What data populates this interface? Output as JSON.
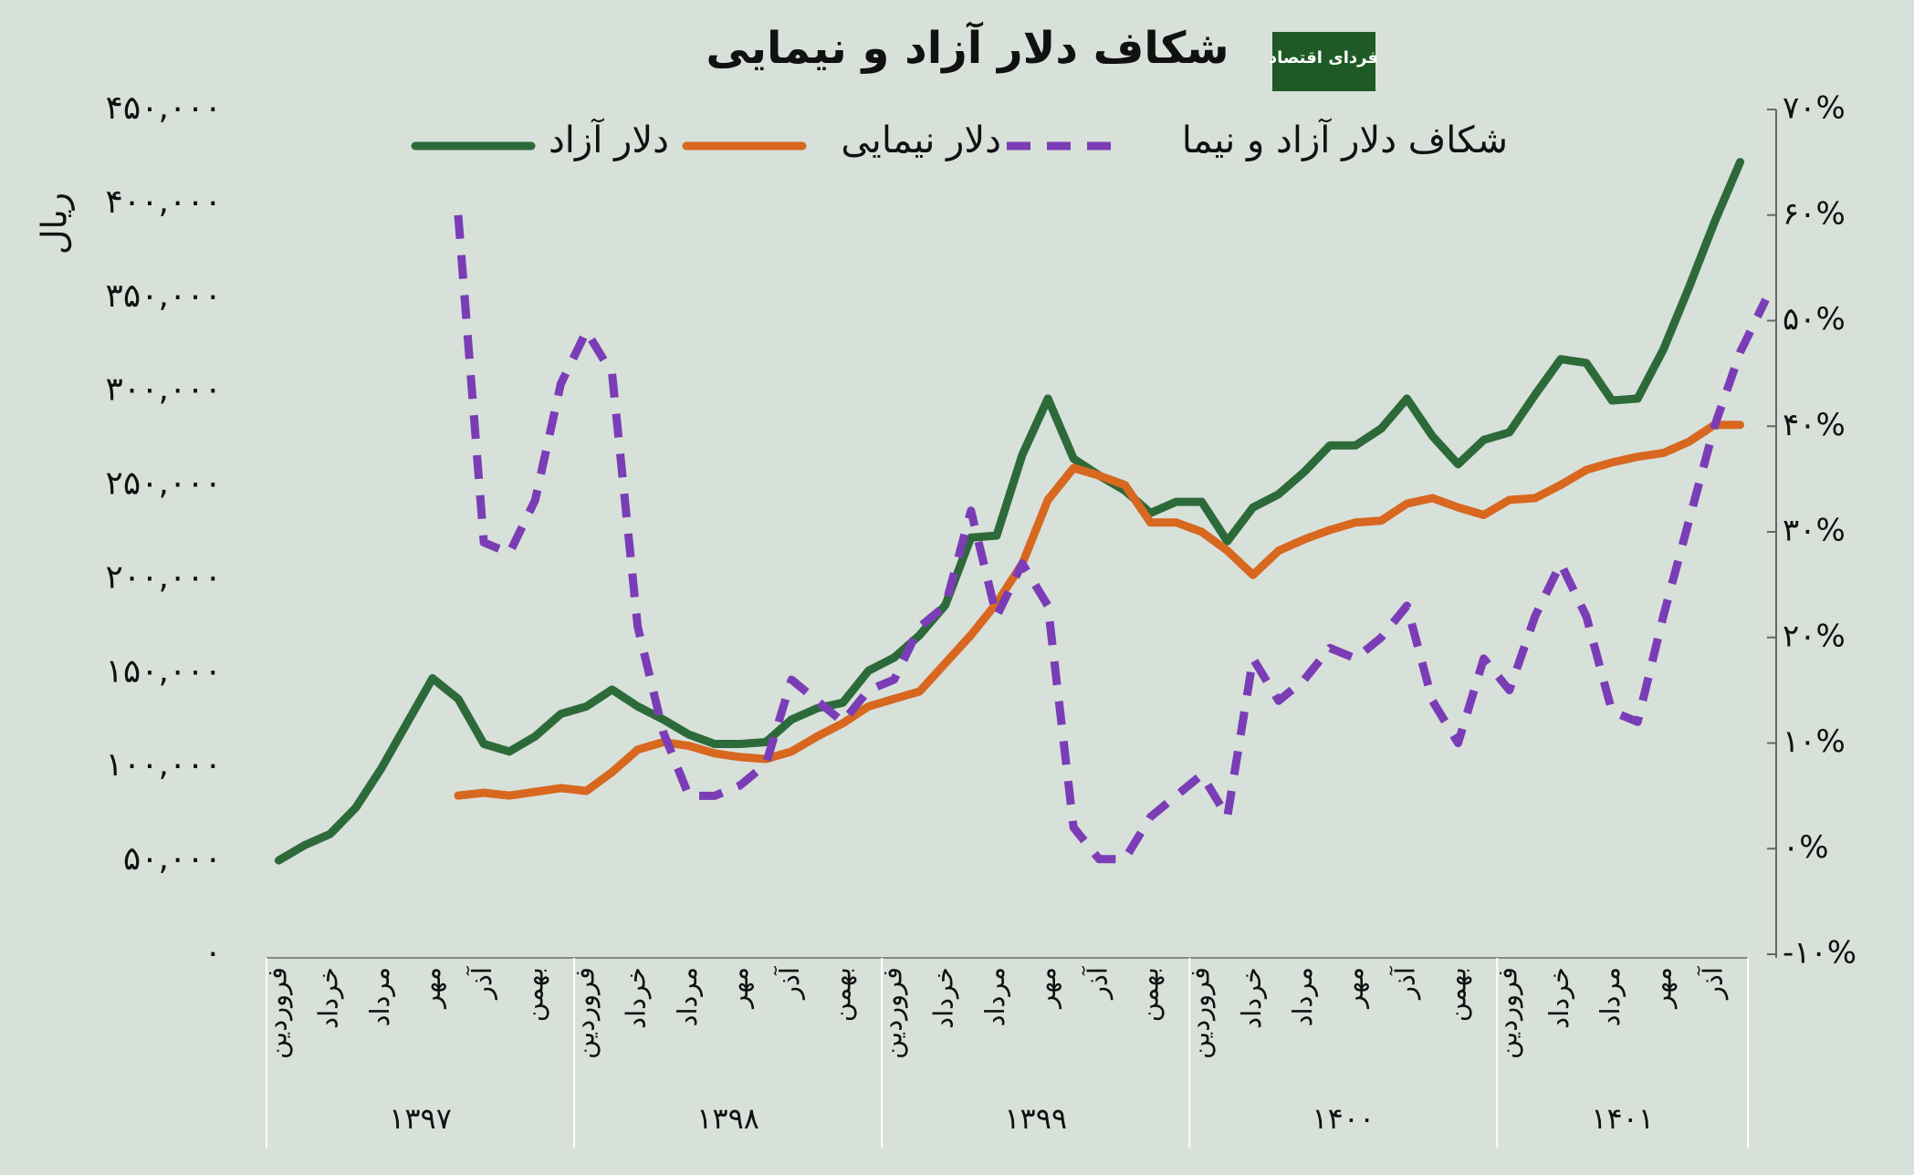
{
  "chart_data": {
    "type": "line",
    "title": "شکاف دلار آزاد و نیمایی",
    "logo_text": "فردای اقتصاد",
    "y_label": "ریال",
    "categories": [
      "فروردین",
      null,
      "خرداد",
      null,
      "مرداد",
      null,
      "مهر",
      null,
      "آذر",
      null,
      "بهمن",
      null,
      "فروردین",
      null,
      "خرداد",
      null,
      "مرداد",
      null,
      "مهر",
      null,
      "آذر",
      null,
      "بهمن",
      null,
      "فروردین",
      null,
      "خرداد",
      null,
      "مرداد",
      null,
      "مهر",
      null,
      "آذر",
      null,
      "بهمن",
      null,
      "فروردین",
      null,
      "خرداد",
      null,
      "مرداد",
      null,
      "مهر",
      null,
      "آذر",
      null,
      "بهمن",
      null,
      "فروردین",
      null,
      "خرداد",
      null,
      "مرداد",
      null,
      "مهر",
      null,
      "آذر",
      null,
      null
    ],
    "year_groups": [
      "۱۳۹۷",
      "۱۳۹۸",
      "۱۳۹۹",
      "۱۴۰۰",
      "۱۴۰۱"
    ],
    "series": [
      {
        "name": "دلار آزاد",
        "color": "#2d6a39",
        "style": "solid",
        "values": [
          50000,
          58000,
          64000,
          78000,
          99000,
          123000,
          147000,
          136000,
          112000,
          108000,
          116000,
          128000,
          132000,
          141000,
          132000,
          125000,
          117000,
          112000,
          112000,
          113000,
          125000,
          131000,
          134000,
          151000,
          158000,
          170000,
          186000,
          222000,
          223000,
          266000,
          296000,
          264000,
          255000,
          247000,
          235000,
          241000,
          241000,
          220000,
          238000,
          245000,
          257000,
          271000,
          271000,
          280000,
          296000,
          276000,
          261000,
          274000,
          278000,
          298000,
          317000,
          315000,
          295000,
          296000,
          322000,
          355000,
          390000,
          422000,
          null
        ]
      },
      {
        "name": "دلار نیمایی",
        "color": "#d8671f",
        "style": "solid",
        "values": [
          null,
          null,
          null,
          null,
          null,
          null,
          null,
          84500,
          86000,
          84500,
          86500,
          88500,
          87000,
          97000,
          109000,
          113000,
          111000,
          107000,
          105000,
          104000,
          108000,
          116000,
          123000,
          132000,
          136000,
          140000,
          155000,
          170000,
          187000,
          208000,
          242000,
          259000,
          255000,
          250000,
          230000,
          230000,
          225000,
          215000,
          202000,
          215000,
          221000,
          226000,
          230000,
          231000,
          240000,
          243000,
          238000,
          234000,
          242000,
          243000,
          250000,
          258000,
          262000,
          265000,
          267000,
          273000,
          282000,
          282000,
          null
        ]
      },
      {
        "name": "شکاف دلار آزاد و نیما",
        "color": "#7b3db6",
        "style": "dashed",
        "axis": "y2",
        "values": [
          null,
          null,
          null,
          null,
          null,
          null,
          null,
          60,
          29,
          28,
          33,
          44,
          49,
          45,
          21,
          11,
          5,
          5,
          6,
          8,
          16,
          14,
          12,
          15,
          16,
          21,
          23,
          32,
          22,
          27,
          23,
          2,
          -1,
          -1,
          3,
          5,
          7,
          3,
          18,
          14,
          16,
          19,
          18,
          20,
          23,
          14,
          10,
          18,
          15,
          22,
          27,
          22,
          13,
          12,
          22,
          31,
          40,
          47,
          52
        ]
      }
    ],
    "ylim": [
      0,
      450000
    ],
    "yticks": [
      {
        "value": 0,
        "label": "۰"
      },
      {
        "value": 50000,
        "label": "۵۰,۰۰۰"
      },
      {
        "value": 100000,
        "label": "۱۰۰,۰۰۰"
      },
      {
        "value": 150000,
        "label": "۱۵۰,۰۰۰"
      },
      {
        "value": 200000,
        "label": "۲۰۰,۰۰۰"
      },
      {
        "value": 250000,
        "label": "۲۵۰,۰۰۰"
      },
      {
        "value": 300000,
        "label": "۳۰۰,۰۰۰"
      },
      {
        "value": 350000,
        "label": "۳۵۰,۰۰۰"
      },
      {
        "value": 400000,
        "label": "۴۰۰,۰۰۰"
      },
      {
        "value": 450000,
        "label": "۴۵۰,۰۰۰"
      }
    ],
    "y2lim": [
      -10,
      70
    ],
    "y2ticks": [
      {
        "value": -10,
        "label": "-۱۰%"
      },
      {
        "value": 0,
        "label": "۰%"
      },
      {
        "value": 10,
        "label": "۱۰%"
      },
      {
        "value": 20,
        "label": "۲۰%"
      },
      {
        "value": 30,
        "label": "۳۰%"
      },
      {
        "value": 40,
        "label": "۴۰%"
      },
      {
        "value": 50,
        "label": "۵۰%"
      },
      {
        "value": 60,
        "label": "۶۰%"
      },
      {
        "value": 70,
        "label": "۷۰%"
      }
    ],
    "grid": false,
    "legend": "top"
  }
}
